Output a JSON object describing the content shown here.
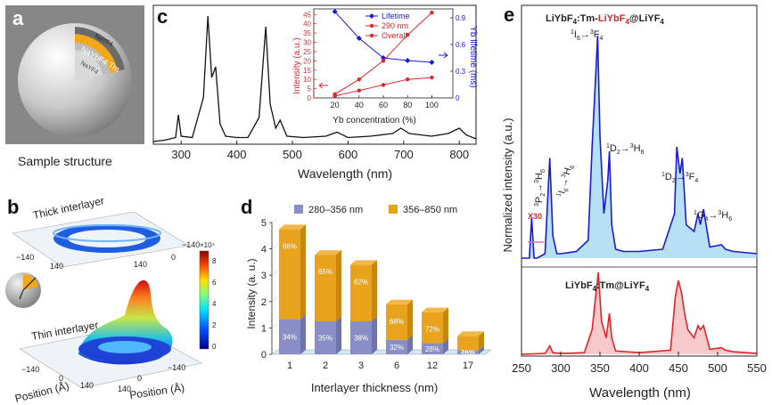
{
  "panels": {
    "a": {
      "label": "a",
      "caption": "Sample structure",
      "shell_outer": "NaYF4",
      "shell_mid": "NaYbF4:Tm",
      "core": "NaYF4"
    },
    "b": {
      "label": "b",
      "thick": "Thick interlayer",
      "thin": "Thin interlayer",
      "x_tick_neg": "−140",
      "x_tick_pos": "140",
      "x_tick_zero": "0",
      "xlabel": "Position (Å)",
      "ylabel": "Position (Å)",
      "cbar_multiplier": "×10⁴",
      "cbar_ticks": [
        "8",
        "6",
        "4",
        "2",
        "0"
      ]
    },
    "c": {
      "label": "c"
    },
    "d": {
      "label": "d"
    },
    "e": {
      "label": "e"
    }
  },
  "colors": {
    "gold": "#e8a21c",
    "purple": "#8a8ec8",
    "blue": "#1a1ad6",
    "red": "#e0242c",
    "lightblue": "#9fd6f0",
    "pink": "#f6b7b7"
  },
  "chart_data": [
    {
      "type": "line",
      "panel": "c",
      "xlabel": "Wavelength (nm)",
      "xlim": [
        250,
        830
      ],
      "xticks": [
        300,
        400,
        500,
        600,
        700,
        800
      ],
      "series": [
        {
          "x": [
            250,
            270,
            290,
            295,
            300,
            320,
            340,
            348,
            355,
            362,
            370,
            380,
            400,
            420,
            440,
            452,
            460,
            470,
            478,
            490,
            520,
            560,
            580,
            600,
            640,
            680,
            695,
            710,
            730,
            750,
            780,
            800,
            812,
            830
          ],
          "values": [
            0.02,
            0.03,
            0.05,
            0.22,
            0.06,
            0.05,
            0.35,
            0.96,
            0.5,
            0.58,
            0.15,
            0.06,
            0.05,
            0.05,
            0.2,
            0.88,
            0.3,
            0.12,
            0.18,
            0.06,
            0.05,
            0.06,
            0.09,
            0.05,
            0.06,
            0.08,
            0.12,
            0.08,
            0.07,
            0.06,
            0.08,
            0.12,
            0.07,
            0.04
          ]
        }
      ]
    },
    {
      "type": "line",
      "panel": "c-inset",
      "xlabel": "Yb concentration (%)",
      "ylabel": "Intensity (a.u.)",
      "ylabel2": "Yb lifetime (ms)",
      "xticks": [
        20,
        40,
        60,
        80,
        100
      ],
      "yticks": [
        0,
        5,
        10,
        15,
        20,
        25,
        30,
        35,
        40,
        45
      ],
      "yticks2": [
        "0",
        "0.3",
        "0.6",
        "0.9"
      ],
      "ylim": [
        0,
        48
      ],
      "y2lim": [
        0,
        1.0
      ],
      "series": [
        {
          "name": "Lifetime",
          "axis": "right",
          "color": "#1a1ad6",
          "x": [
            20,
            40,
            60,
            80,
            100
          ],
          "values": [
            0.97,
            0.67,
            0.45,
            0.42,
            0.4
          ]
        },
        {
          "name": "290 nm",
          "axis": "left",
          "color": "#e0242c",
          "x": [
            20,
            40,
            60,
            80,
            100
          ],
          "values": [
            2,
            10,
            20,
            34,
            46
          ]
        },
        {
          "name": "Overall",
          "axis": "left",
          "color": "#e0242c",
          "x": [
            20,
            40,
            60,
            80,
            100
          ],
          "values": [
            1,
            4,
            7,
            10,
            11
          ]
        }
      ]
    },
    {
      "type": "bar",
      "panel": "d",
      "xlabel": "Interlayer thickness (nm)",
      "ylabel": "Intensity (a. u.)",
      "ylim": [
        0,
        5
      ],
      "yticks": [
        "0",
        "1",
        "2",
        "3",
        "4",
        "5"
      ],
      "categories": [
        "1",
        "2",
        "3",
        "6",
        "12",
        "17"
      ],
      "series": [
        {
          "name": "280–356 nm",
          "values": [
            1.33,
            1.25,
            1.25,
            0.55,
            0.42,
            0.15
          ],
          "pct": [
            "34%",
            "35%",
            "38%",
            "32%",
            "28%",
            "24%"
          ]
        },
        {
          "name": "356–850 nm",
          "values": [
            3.42,
            2.53,
            2.15,
            1.35,
            1.18,
            0.55
          ],
          "pct": [
            "66%",
            "65%",
            "62%",
            "68%",
            "72%",
            "76%"
          ]
        }
      ]
    },
    {
      "type": "line",
      "panel": "e",
      "xlabel": "Wavelength (nm)",
      "ylabel": "Normalized intensity (a.u.)",
      "xlim": [
        250,
        550
      ],
      "xticks": [
        "250",
        "300",
        "350",
        "400",
        "450",
        "500",
        "550"
      ],
      "top_label_pre": "LiYbF",
      "top_label_mid": ":Tm-",
      "top_label_red": "LiYbF",
      "top_label_post": "@LiYF",
      "sub4": "4",
      "bottom_label": "LiYbF",
      "bottom_mid": ":Tm@LiYF",
      "x30": "X30",
      "annotations": [
        {
          "base": "1",
          "i": "I",
          "sub": "6",
          "arrow": "→",
          "base2": "3",
          "f": "F",
          "sub2": "4"
        },
        {
          "base": "1",
          "i": "D",
          "sub": "2",
          "arrow": "→",
          "base2": "3",
          "f": "H",
          "sub2": "6"
        },
        {
          "base": "1",
          "i": "D",
          "sub": "2",
          "arrow": "→",
          "base2": "3",
          "f": "F",
          "sub2": "4"
        },
        {
          "base": "1",
          "i": "G",
          "sub": "4",
          "arrow": "→",
          "base2": "3",
          "f": "H",
          "sub2": "6"
        },
        {
          "base": "3",
          "i": "P",
          "sub": "2",
          "arrow": "→",
          "base2": "3",
          "f": "H",
          "sub2": "6"
        },
        {
          "base": "1",
          "i": "I",
          "sub": "6",
          "arrow": "→",
          "base2": "3",
          "f": "H",
          "sub2": "6"
        }
      ],
      "series": [
        {
          "name": "LiYbF4:Tm-LiYbF4@LiYF4",
          "x": [
            250,
            260,
            263,
            266,
            270,
            280,
            286,
            290,
            295,
            300,
            320,
            335,
            340,
            345,
            347,
            350,
            355,
            360,
            362,
            365,
            370,
            380,
            400,
            430,
            445,
            448,
            452,
            455,
            460,
            470,
            475,
            478,
            482,
            490,
            505,
            510,
            520,
            550
          ],
          "values": [
            0.0,
            0.0,
            0.18,
            0.0,
            0.0,
            0.02,
            0.45,
            0.1,
            0.02,
            0.02,
            0.03,
            0.08,
            0.5,
            0.85,
            1.0,
            0.55,
            0.2,
            0.35,
            0.48,
            0.15,
            0.04,
            0.03,
            0.03,
            0.04,
            0.2,
            0.5,
            0.38,
            0.45,
            0.15,
            0.12,
            0.2,
            0.15,
            0.22,
            0.05,
            0.06,
            0.04,
            0.03,
            0.02
          ]
        },
        {
          "name": "LiYbF4:Tm@LiYF4",
          "x": [
            250,
            280,
            286,
            290,
            300,
            330,
            340,
            345,
            348,
            352,
            358,
            362,
            365,
            370,
            400,
            440,
            446,
            450,
            454,
            458,
            462,
            470,
            475,
            478,
            482,
            490,
            505,
            510,
            520,
            550
          ],
          "values": [
            0.0,
            0.01,
            0.1,
            0.02,
            0.01,
            0.02,
            0.3,
            0.75,
            1.0,
            0.4,
            0.2,
            0.5,
            0.2,
            0.04,
            0.02,
            0.05,
            0.7,
            0.9,
            0.75,
            0.5,
            0.3,
            0.2,
            0.35,
            0.3,
            0.35,
            0.06,
            0.08,
            0.05,
            0.03,
            0.01
          ]
        }
      ]
    }
  ]
}
